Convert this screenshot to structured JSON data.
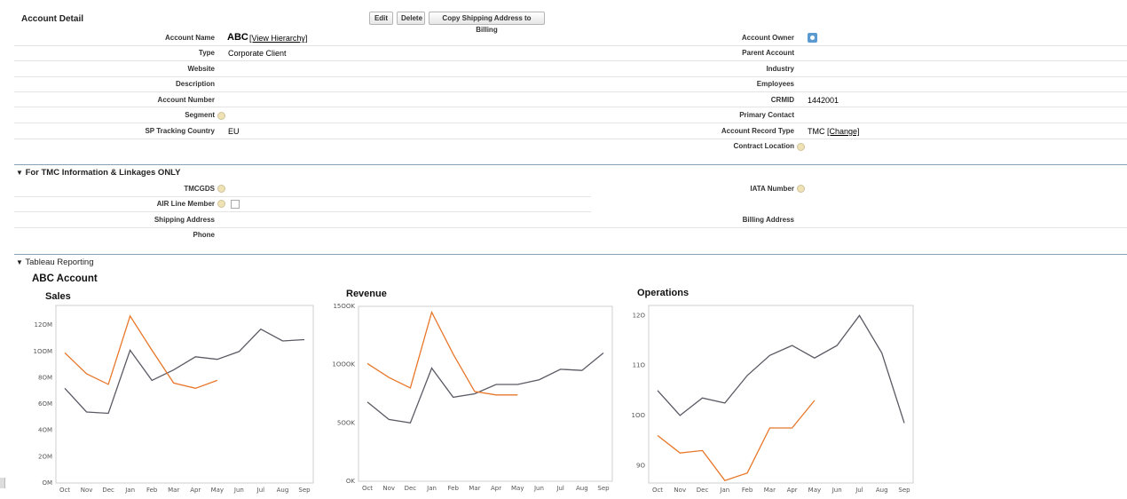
{
  "account_detail": {
    "title": "Account Detail",
    "buttons": [
      "Edit",
      "Delete",
      "Copy Shipping Address to Billing"
    ],
    "left_fields": [
      {
        "label": "Account Name",
        "value": "ABC",
        "link": "[View Hierarchy]"
      },
      {
        "label": "Type",
        "value": "Corporate Client"
      },
      {
        "label": "Website",
        "value": ""
      },
      {
        "label": "Description",
        "value": ""
      },
      {
        "label": "Account Number",
        "value": ""
      },
      {
        "label": "Segment",
        "value": ""
      },
      {
        "label": "SP Tracking Country",
        "value": "EU"
      }
    ],
    "right_fields": [
      {
        "label": "Account Owner",
        "value": ""
      },
      {
        "label": "Parent Account",
        "value": ""
      },
      {
        "label": "Industry",
        "value": ""
      },
      {
        "label": "Employees",
        "value": ""
      },
      {
        "label": "CRMID",
        "value": "1442001"
      },
      {
        "label": "Primary Contact",
        "value": ""
      },
      {
        "label": "Account Record Type",
        "value": "TMC",
        "link": "[Change]"
      },
      {
        "label": "Contract Location",
        "value": ""
      }
    ]
  },
  "tmc_section": {
    "title": "For TMC Information & Linkages ONLY",
    "left_fields": [
      "TMCGDS",
      "AIR Line Member",
      "Shipping Address",
      "Phone"
    ],
    "right_fields": [
      "IATA Number",
      "Billing Address"
    ]
  },
  "tableau": {
    "title": "Tableau Reporting",
    "account_title": "ABC Account"
  },
  "colors": {
    "series_dark": "#5a5a64",
    "series_orange": "#e8772a",
    "section_line": "#8aa0b4"
  },
  "chart_data": [
    {
      "type": "line",
      "title": "Sales",
      "categories": [
        "Oct",
        "Nov",
        "Dec",
        "Jan",
        "Feb",
        "Mar",
        "Apr",
        "May",
        "Jun",
        "Jul",
        "Aug",
        "Sep"
      ],
      "yticks": [
        "OM",
        "2OM",
        "4OM",
        "6OM",
        "8OM",
        "1OOM",
        "12OM"
      ],
      "ylim": [
        0,
        135
      ],
      "series": [
        {
          "values": [
            72,
            54,
            53,
            101,
            78,
            86,
            96,
            94,
            100,
            117,
            108,
            109
          ]
        },
        {
          "values": [
            99,
            83,
            75,
            127,
            101,
            76,
            72,
            78,
            null,
            null,
            null,
            null
          ]
        }
      ]
    },
    {
      "type": "line",
      "title": "Revenue",
      "categories": [
        "Oct",
        "Nov",
        "Dec",
        "Jan",
        "Feb",
        "Mar",
        "Apr",
        "May",
        "Jun",
        "Jul",
        "Aug",
        "Sep"
      ],
      "yticks": [
        "OK",
        "5OOK",
        "1OOOK",
        "15OOK"
      ],
      "ylim": [
        0,
        1500
      ],
      "series": [
        {
          "values": [
            680,
            530,
            500,
            970,
            720,
            750,
            830,
            830,
            870,
            960,
            950,
            1100
          ]
        },
        {
          "values": [
            1010,
            890,
            800,
            1450,
            1090,
            770,
            740,
            740,
            null,
            null,
            null,
            null
          ]
        }
      ]
    },
    {
      "type": "line",
      "title": "Operations",
      "categories": [
        "Oct",
        "Nov",
        "Dec",
        "Jan",
        "Feb",
        "Mar",
        "Apr",
        "May",
        "Jun",
        "Jul",
        "Aug",
        "Sep"
      ],
      "yticks": [
        "9O",
        "1OO",
        "11O",
        "12O"
      ],
      "ylim": [
        86.5,
        122
      ],
      "series": [
        {
          "values": [
            105,
            100,
            103.5,
            102.5,
            108,
            112,
            114,
            111.5,
            114,
            120,
            112.5,
            98.5
          ]
        },
        {
          "values": [
            96,
            92.5,
            93,
            87,
            88.5,
            97.5,
            97.5,
            103,
            null,
            null,
            null,
            null
          ]
        }
      ]
    }
  ]
}
